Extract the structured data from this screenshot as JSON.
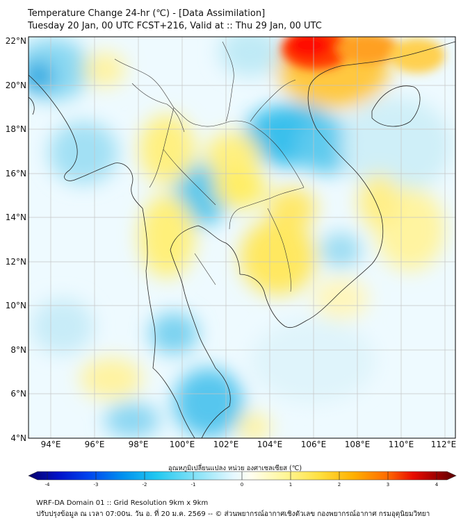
{
  "header": {
    "title_line1": "Temperature Change 24-hr (℃) - [Data Assimilation]",
    "title_line2": "Tuesday 20 Jan, 00 UTC FCST+216, Valid at :: Thu 29 Jan, 00 UTC"
  },
  "map": {
    "lat_labels": [
      "22°N",
      "20°N",
      "18°N",
      "16°N",
      "14°N",
      "12°N",
      "10°N",
      "8°N",
      "6°N",
      "4°N"
    ],
    "lon_labels": [
      "94°E",
      "96°E",
      "98°E",
      "100°E",
      "102°E",
      "104°E",
      "106°E",
      "108°E",
      "110°E",
      "112°E"
    ],
    "field_colors": {
      "strong_warm": "#ff1a00",
      "warm": "#ffb000",
      "mild_warm": "#ffee66",
      "neutral": "#eefaff",
      "mild_cool": "#a8e4f6",
      "cool": "#33c4f0",
      "strong_cool": "#0a8ed8"
    }
  },
  "colorbar": {
    "title": "อุณหภูมิเปลี่ยนแปลง หน่วย องศาเซลเซียส (℃)",
    "ticks": [
      "-4",
      "-3",
      "-2",
      "-1",
      "0",
      "1",
      "2",
      "3",
      "4"
    ],
    "range": [
      -4,
      4
    ],
    "colors": [
      "#07006a",
      "#0012c8",
      "#0044ee",
      "#0090ee",
      "#22c8f0",
      "#8fe4f8",
      "#e6f8ff",
      "#fffef0",
      "#fff799",
      "#ffe040",
      "#ffb000",
      "#ff6a00",
      "#e80c00",
      "#a40000",
      "#5a0000"
    ]
  },
  "footer": {
    "line1": "WRF-DA Domain 01 :: Grid Resolution 9km x 9km",
    "line2": "ปรับปรุงข้อมูล ณ เวลา 07:00น. วัน อ. ที่ 20 ม.ค. 2569 -- © ส่วนพยากรณ์อากาศเชิงตัวเลข กองพยากรณ์อากาศ กรมอุตุนิยมวิทยา"
  }
}
